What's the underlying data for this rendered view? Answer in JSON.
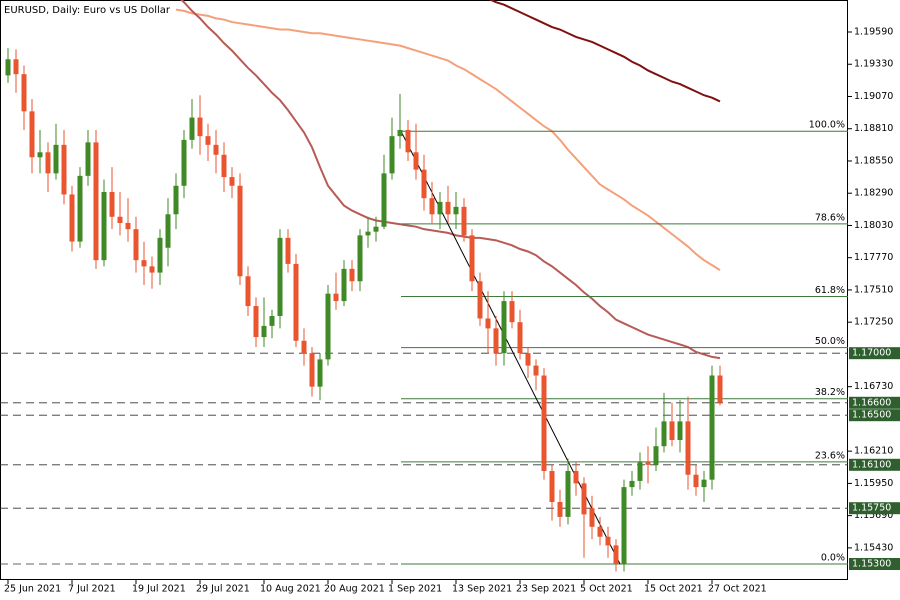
{
  "chart_data": {
    "type": "candlestick",
    "title": "EURUSD, Daily:  Euro vs US Dollar",
    "categories": [
      "25 Jun 2021",
      null,
      null,
      null,
      null,
      null,
      null,
      null,
      "7 Jul 2021",
      null,
      null,
      null,
      null,
      null,
      null,
      null,
      "19 Jul 2021",
      null,
      null,
      null,
      null,
      null,
      null,
      null,
      "29 Jul 2021",
      null,
      null,
      null,
      null,
      null,
      null,
      null,
      "10 Aug 2021",
      null,
      null,
      null,
      null,
      null,
      null,
      null,
      "20 Aug 2021",
      null,
      null,
      null,
      null,
      null,
      null,
      null,
      "1 Sep 2021",
      null,
      null,
      null,
      null,
      null,
      null,
      null,
      "13 Sep 2021",
      null,
      null,
      null,
      null,
      null,
      null,
      null,
      "23 Sep 2021",
      null,
      null,
      null,
      null,
      null,
      null,
      null,
      "5 Oct 2021",
      null,
      null,
      null,
      null,
      null,
      null,
      null,
      "15 Oct 2021",
      null,
      null,
      null,
      null,
      null,
      null,
      null,
      "27 Oct 2021",
      null
    ],
    "open": [
      1.1924,
      1.1937,
      1.1925,
      1.1895,
      1.1858,
      1.1862,
      1.1845,
      1.1868,
      1.1828,
      1.179,
      1.1843,
      1.187,
      1.1775,
      1.183,
      1.181,
      1.1805,
      1.18,
      1.1775,
      1.177,
      1.1765,
      1.1785,
      1.1812,
      1.1835,
      1.1872,
      1.189,
      1.1875,
      1.1868,
      1.186,
      1.1842,
      1.1835,
      1.1762,
      1.1738,
      1.1713,
      1.1722,
      1.173,
      1.1793,
      1.1772,
      1.171,
      1.17,
      1.1673,
      1.1695,
      1.1748,
      1.1742,
      1.1768,
      1.1758,
      1.1795,
      1.1798,
      1.1802,
      1.1845,
      1.1875,
      1.188,
      1.1862,
      1.1848,
      1.1825,
      1.1812,
      1.1822,
      1.1812,
      1.1818,
      1.1795,
      1.1758,
      1.1728,
      1.172,
      1.17,
      1.1742,
      1.1725,
      1.17,
      1.169,
      1.1682,
      1.1605,
      1.158,
      1.1568,
      1.1605,
      1.1595,
      1.1575,
      1.156,
      1.1552,
      1.1545,
      1.153,
      1.1592,
      1.1597,
      1.1612,
      1.161,
      1.1625,
      1.1645,
      1.163,
      1.1645,
      1.1602,
      1.1592,
      1.1598,
      1.1682
    ],
    "high": [
      1.1946,
      1.1945,
      1.1932,
      1.1905,
      1.188,
      1.187,
      1.1885,
      1.188,
      1.1835,
      1.185,
      1.188,
      1.188,
      1.184,
      1.185,
      1.183,
      1.1825,
      1.181,
      1.179,
      1.1778,
      1.18,
      1.1825,
      1.1845,
      1.188,
      1.1905,
      1.1908,
      1.1885,
      1.188,
      1.187,
      1.185,
      1.1845,
      1.177,
      1.1745,
      1.1745,
      1.1735,
      1.18,
      1.18,
      1.178,
      1.172,
      1.1705,
      1.17,
      1.1755,
      1.1765,
      1.1775,
      1.1775,
      1.18,
      1.181,
      1.181,
      1.186,
      1.189,
      1.1909,
      1.1888,
      1.1885,
      1.186,
      1.1838,
      1.183,
      1.1835,
      1.183,
      1.1825,
      1.18,
      1.1765,
      1.175,
      1.173,
      1.175,
      1.175,
      1.1735,
      1.1705,
      1.1695,
      1.1688,
      1.161,
      1.159,
      1.1615,
      1.1612,
      1.16,
      1.1585,
      1.1568,
      1.156,
      1.155,
      1.1598,
      1.1605,
      1.162,
      1.1625,
      1.164,
      1.1668,
      1.166,
      1.1662,
      1.1665,
      1.161,
      1.1605,
      1.169,
      1.169
    ],
    "low": [
      1.1918,
      1.191,
      1.188,
      1.1845,
      1.1845,
      1.183,
      1.184,
      1.182,
      1.1782,
      1.1785,
      1.1835,
      1.1768,
      1.177,
      1.18,
      1.1795,
      1.179,
      1.1765,
      1.1755,
      1.1752,
      1.1755,
      1.177,
      1.18,
      1.1825,
      1.1865,
      1.186,
      1.1855,
      1.1845,
      1.183,
      1.1825,
      1.1755,
      1.173,
      1.1705,
      1.1705,
      1.1712,
      1.172,
      1.1765,
      1.1705,
      1.169,
      1.1665,
      1.1662,
      1.169,
      1.1735,
      1.1738,
      1.175,
      1.175,
      1.1785,
      1.179,
      1.18,
      1.184,
      1.1865,
      1.1855,
      1.184,
      1.1815,
      1.1805,
      1.18,
      1.1805,
      1.18,
      1.179,
      1.175,
      1.1722,
      1.17,
      1.169,
      1.169,
      1.172,
      1.1695,
      1.168,
      1.167,
      1.1598,
      1.1565,
      1.156,
      1.1562,
      1.1585,
      1.1535,
      1.155,
      1.1545,
      1.1535,
      1.1524,
      1.1524,
      1.1585,
      1.159,
      1.1595,
      1.1605,
      1.162,
      1.1625,
      1.162,
      1.159,
      1.1585,
      1.158,
      1.159,
      1.1658
    ],
    "close": [
      1.1937,
      1.1925,
      1.1895,
      1.1858,
      1.1862,
      1.1845,
      1.1868,
      1.1828,
      1.179,
      1.1843,
      1.187,
      1.1775,
      1.183,
      1.181,
      1.1805,
      1.18,
      1.1775,
      1.177,
      1.1765,
      1.1793,
      1.1812,
      1.1835,
      1.1872,
      1.189,
      1.1875,
      1.1868,
      1.186,
      1.1842,
      1.1835,
      1.1762,
      1.1738,
      1.1713,
      1.1722,
      1.173,
      1.1793,
      1.1772,
      1.171,
      1.17,
      1.1673,
      1.1695,
      1.1748,
      1.1742,
      1.1768,
      1.1758,
      1.1795,
      1.1798,
      1.1802,
      1.1845,
      1.1875,
      1.188,
      1.1862,
      1.1848,
      1.1825,
      1.1812,
      1.1822,
      1.1812,
      1.1818,
      1.1795,
      1.1758,
      1.1728,
      1.172,
      1.17,
      1.1742,
      1.1725,
      1.17,
      1.169,
      1.1682,
      1.1605,
      1.158,
      1.1568,
      1.1605,
      1.1595,
      1.157,
      1.156,
      1.1552,
      1.1545,
      1.153,
      1.1592,
      1.1597,
      1.1612,
      1.161,
      1.1625,
      1.1645,
      1.163,
      1.1645,
      1.1602,
      1.1592,
      1.1598,
      1.1682,
      1.166
    ],
    "up_color": "#3f8a26",
    "down_color": "#e8552f",
    "ylim": [
      1.15171,
      1.19848
    ],
    "yticks": [
      {
        "value": 1.1959,
        "label": "1.19590"
      },
      {
        "value": 1.1933,
        "label": "1.19330"
      },
      {
        "value": 1.1907,
        "label": "1.19070"
      },
      {
        "value": 1.1881,
        "label": "1.18810"
      },
      {
        "value": 1.1855,
        "label": "1.18550"
      },
      {
        "value": 1.1829,
        "label": "1.18290"
      },
      {
        "value": 1.1803,
        "label": "1.18030"
      },
      {
        "value": 1.1777,
        "label": "1.17770"
      },
      {
        "value": 1.1751,
        "label": "1.17510"
      },
      {
        "value": 1.1725,
        "label": "1.17250"
      },
      {
        "value": 1.1673,
        "label": "1.16730"
      },
      {
        "value": 1.1621,
        "label": "1.16210"
      },
      {
        "value": 1.1595,
        "label": "1.15950"
      },
      {
        "value": 1.1569,
        "label": "1.15690"
      },
      {
        "value": 1.1543,
        "label": "1.15430"
      }
    ],
    "overlays": [
      {
        "color": "#7f1010",
        "values": [
          null,
          null,
          null,
          null,
          null,
          null,
          null,
          null,
          null,
          null,
          null,
          null,
          null,
          null,
          null,
          null,
          null,
          null,
          null,
          null,
          null,
          null,
          null,
          null,
          null,
          null,
          null,
          null,
          null,
          null,
          null,
          null,
          null,
          null,
          null,
          null,
          null,
          null,
          null,
          null,
          null,
          null,
          null,
          null,
          null,
          null,
          null,
          null,
          null,
          null,
          null,
          null,
          null,
          null,
          null,
          null,
          null,
          null,
          null,
          null,
          1.1986,
          1.1983,
          1.1981,
          1.1978,
          1.1975,
          1.1972,
          1.1969,
          1.1966,
          1.1963,
          1.1961,
          1.1958,
          1.1955,
          1.1953,
          1.1951,
          1.1948,
          1.1945,
          1.1942,
          1.1939,
          1.1935,
          1.1932,
          1.1928,
          1.1925,
          1.1922,
          1.1919,
          1.1917,
          1.1914,
          1.1911,
          1.1908,
          1.1906,
          1.1903
        ]
      },
      {
        "color": "#f4a07a",
        "values": [
          null,
          null,
          null,
          null,
          null,
          null,
          null,
          null,
          null,
          null,
          null,
          null,
          null,
          null,
          null,
          null,
          null,
          null,
          null,
          null,
          null,
          1.1977,
          1.1976,
          1.1974,
          1.1973,
          1.1972,
          1.197,
          1.1969,
          1.1967,
          1.1966,
          1.1965,
          1.1964,
          1.1963,
          1.1962,
          1.1961,
          1.1961,
          1.196,
          1.1959,
          1.1958,
          1.1958,
          1.1957,
          1.1956,
          1.1955,
          1.1954,
          1.1953,
          1.1952,
          1.1951,
          1.195,
          1.1949,
          1.1948,
          1.1946,
          1.1944,
          1.1942,
          1.194,
          1.1938,
          1.1936,
          1.1932,
          1.1929,
          1.1925,
          1.1921,
          1.1917,
          1.1913,
          1.1908,
          1.1903,
          1.1898,
          1.1893,
          1.1888,
          1.1883,
          1.1879,
          1.1872,
          1.1864,
          1.1857,
          1.185,
          1.1843,
          1.1836,
          1.1832,
          1.1828,
          1.1824,
          1.1819,
          1.1815,
          1.1811,
          1.1806,
          1.1801,
          1.1796,
          1.1791,
          1.1786,
          1.178,
          1.1775,
          1.1771,
          1.1767
        ]
      },
      {
        "color": "#b85a55",
        "values": [
          null,
          null,
          null,
          null,
          null,
          null,
          null,
          null,
          null,
          null,
          null,
          null,
          null,
          null,
          null,
          null,
          null,
          null,
          null,
          null,
          null,
          1.1989,
          1.1983,
          1.1976,
          1.197,
          1.1963,
          1.1957,
          1.195,
          1.1944,
          1.1937,
          1.193,
          1.1924,
          1.1917,
          1.191,
          1.1904,
          1.1896,
          1.1887,
          1.1878,
          1.1866,
          1.185,
          1.1835,
          1.1827,
          1.1819,
          1.1815,
          1.1812,
          1.1809,
          1.1807,
          1.1806,
          1.1805,
          1.1804,
          1.1803,
          1.1802,
          1.18,
          1.1799,
          1.1798,
          1.1797,
          1.1795,
          1.1794,
          1.1793,
          1.1793,
          1.1792,
          1.1791,
          1.1789,
          1.1787,
          1.1784,
          1.1782,
          1.1779,
          1.1774,
          1.177,
          1.1765,
          1.176,
          1.1755,
          1.1749,
          1.1744,
          1.1738,
          1.1733,
          1.1727,
          1.1724,
          1.1721,
          1.1718,
          1.1715,
          1.1713,
          1.1711,
          1.1709,
          1.1707,
          1.1705,
          1.1701,
          1.1699,
          1.1697,
          1.1696
        ]
      }
    ],
    "fibonacci": {
      "color": "#3d7a3d",
      "levels": [
        {
          "value": 1.1879,
          "label": "100.0%"
        },
        {
          "value": 1.18043,
          "label": "78.6%"
        },
        {
          "value": 1.17457,
          "label": "61.8%"
        },
        {
          "value": 1.17045,
          "label": "50.0%"
        },
        {
          "value": 1.16633,
          "label": "38.2%"
        },
        {
          "value": 1.16124,
          "label": "23.6%"
        },
        {
          "value": 1.153,
          "label": "0.0%"
        }
      ]
    },
    "levels": [
      {
        "value": 1.17,
        "label": "1.17000"
      },
      {
        "value": 1.166,
        "label": "1.16600"
      },
      {
        "value": 1.165,
        "label": "1.16500"
      },
      {
        "value": 1.161,
        "label": "1.16100"
      },
      {
        "value": 1.1575,
        "label": "1.15750"
      },
      {
        "value": 1.153,
        "label": "1.15300"
      }
    ],
    "level_color": "#2f5f2f"
  }
}
